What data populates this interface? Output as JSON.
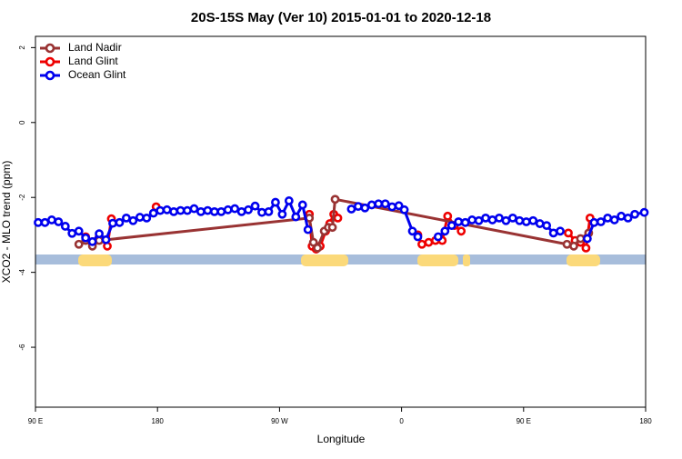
{
  "chart_data": {
    "type": "line",
    "title": "20S-15S May (Ver 10)   2015-01-01 to 2020-12-18",
    "x_label": "Longitude",
    "y_label": "XCO2 - MLO trend (ppm)",
    "xlim": [
      90,
      540
    ],
    "ylim": [
      -7.6,
      2.3
    ],
    "xticks": [
      {
        "value": 90,
        "label": "90 E"
      },
      {
        "value": 180,
        "label": "180"
      },
      {
        "value": 270,
        "label": "90 W"
      },
      {
        "value": 360,
        "label": "0"
      },
      {
        "value": 450,
        "label": "90 E"
      },
      {
        "value": 540,
        "label": "180"
      }
    ],
    "yticks": [
      2,
      0,
      -2,
      -4,
      -6
    ],
    "legend": "top-left",
    "series": [
      {
        "name": "Land Nadir",
        "color": "#993333",
        "x": [
          122,
          127,
          132,
          137,
          292,
          295,
          298,
          303,
          306,
          309,
          311,
          482,
          487,
          492,
          498
        ],
        "values": [
          -3.25,
          -3.15,
          -3.3,
          -3.15,
          -2.55,
          -3.2,
          -3.35,
          -2.9,
          -2.8,
          -2.8,
          -2.05,
          -3.25,
          -3.3,
          -3.1,
          -2.95
        ]
      },
      {
        "name": "Land Glint",
        "color": "#ee0000",
        "x": [
          127,
          132,
          137,
          143,
          146,
          null,
          179,
          null,
          292,
          294,
          297,
          300,
          304,
          307,
          310,
          313,
          null,
          372,
          375,
          380,
          385,
          390,
          394,
          399,
          404,
          null,
          483,
          488,
          492,
          496,
          499
        ],
        "values": [
          -3.05,
          -3.18,
          -3.05,
          -3.3,
          -2.57,
          null,
          -2.25,
          null,
          -2.45,
          -3.3,
          -3.38,
          -3.3,
          -2.9,
          -2.7,
          -2.45,
          -2.55,
          null,
          -3.0,
          -3.25,
          -3.2,
          -3.15,
          -3.15,
          -2.5,
          -2.75,
          -2.9,
          null,
          -2.95,
          -3.15,
          -3.2,
          -3.35,
          -2.55
        ]
      },
      {
        "name": "Ocean Glint",
        "color": "#0000ee",
        "x": [
          92,
          97,
          102,
          107,
          112,
          117,
          122,
          127,
          132,
          137,
          142,
          147,
          152,
          157,
          162,
          167,
          172,
          177,
          182,
          187,
          192,
          197,
          202,
          207,
          212,
          217,
          222,
          227,
          232,
          237,
          242,
          247,
          252,
          257,
          262,
          267,
          272,
          277,
          282,
          287,
          291,
          null,
          323,
          328,
          333,
          338,
          343,
          348,
          353,
          358,
          362,
          368,
          372,
          null,
          387,
          392,
          397,
          402,
          407,
          412,
          417,
          422,
          427,
          432,
          437,
          442,
          447,
          452,
          457,
          462,
          467,
          472,
          477,
          null,
          497,
          502,
          507,
          512,
          517,
          522,
          527,
          532,
          539
        ],
        "values": [
          -2.67,
          -2.67,
          -2.6,
          -2.65,
          -2.77,
          -2.96,
          -2.9,
          -3.08,
          -3.18,
          -2.97,
          -3.13,
          -2.69,
          -2.67,
          -2.55,
          -2.62,
          -2.53,
          -2.55,
          -2.42,
          -2.35,
          -2.33,
          -2.38,
          -2.35,
          -2.35,
          -2.3,
          -2.38,
          -2.35,
          -2.38,
          -2.38,
          -2.33,
          -2.3,
          -2.38,
          -2.33,
          -2.23,
          -2.4,
          -2.38,
          -2.13,
          -2.45,
          -2.09,
          -2.52,
          -2.2,
          -2.86,
          null,
          -2.31,
          -2.24,
          -2.28,
          -2.2,
          -2.17,
          -2.17,
          -2.25,
          -2.22,
          -2.33,
          -2.9,
          -3.05,
          null,
          -3.05,
          -2.9,
          -2.75,
          -2.65,
          -2.67,
          -2.6,
          -2.62,
          -2.55,
          -2.6,
          -2.55,
          -2.62,
          -2.55,
          -2.62,
          -2.65,
          -2.62,
          -2.7,
          -2.75,
          -2.95,
          -2.9,
          null,
          -3.1,
          -2.67,
          -2.65,
          -2.55,
          -2.6,
          -2.5,
          -2.55,
          -2.45,
          -2.4
        ]
      }
    ]
  }
}
